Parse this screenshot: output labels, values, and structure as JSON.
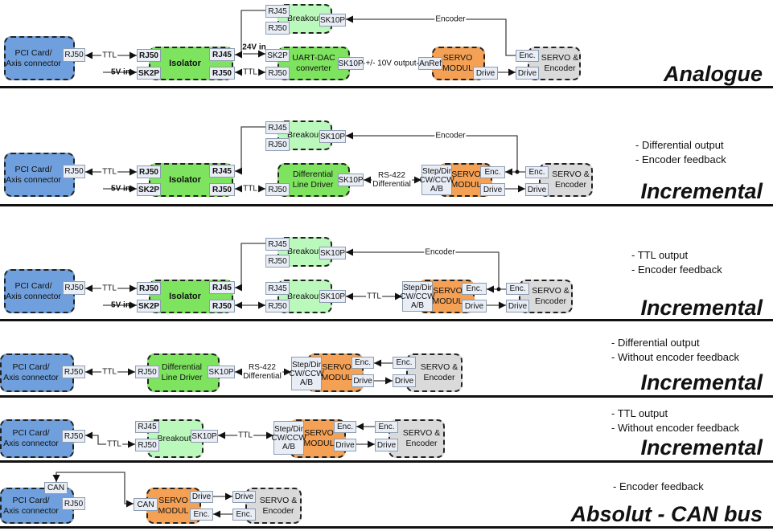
{
  "colors": {
    "pci": "#6f9fdc",
    "driver": "#7ee35e",
    "breakout": "#bbf8bb",
    "servo_module": "#f5a155",
    "servo_encoder": "#dadada"
  },
  "sections": [
    {
      "title": "Analogue",
      "notes": [],
      "blocks": [
        "PCI Card/\nAxis connector",
        "Isolator",
        "Breakout",
        "UART-DAC\nconverter",
        "SERVO\nMODUL",
        "SERVO &\nEncoder"
      ],
      "ports": [
        "RJ50",
        "RJ50",
        "SK2P",
        "RJ45",
        "RJ50",
        "RJ45",
        "RJ50",
        "SK10P",
        "SK2P",
        "RJ50",
        "SK10P",
        "AnRef",
        "Drive",
        "Enc.",
        "Drive"
      ],
      "wire_labels": [
        "TTL",
        "5V in",
        "24V in",
        "TTL",
        "+/- 10V output",
        "Encoder"
      ]
    },
    {
      "title": "Incremental",
      "notes": [
        "- Differential output",
        "- Encoder feedback"
      ],
      "blocks": [
        "PCI Card/\nAxis connector",
        "Isolator",
        "Breakout",
        "Differential\nLine Driver",
        "SERVO\nMODUL",
        "SERVO &\nEncoder"
      ],
      "ports": [
        "RJ50",
        "RJ50",
        "SK2P",
        "RJ45",
        "RJ50",
        "RJ45",
        "RJ50",
        "SK10P",
        "RJ50",
        "SK10P",
        "Step/Dir\nCW/CCW\nA/B",
        "Enc.",
        "Drive",
        "Enc.",
        "Drive"
      ],
      "wire_labels": [
        "TTL",
        "5V in",
        "TTL",
        "RS-422\nDifferential",
        "Encoder"
      ]
    },
    {
      "title": "Incremental",
      "notes": [
        "- TTL output",
        "- Encoder feedback"
      ],
      "blocks": [
        "PCI Card/\nAxis connector",
        "Isolator",
        "Breakout",
        "Breakout",
        "SERVO\nMODUL",
        "SERVO &\nEncoder"
      ],
      "ports": [
        "RJ50",
        "RJ50",
        "SK2P",
        "RJ45",
        "RJ50",
        "RJ45",
        "RJ50",
        "SK10P",
        "RJ45",
        "RJ50",
        "SK10P",
        "Step/Dir\nCW/CCW\nA/B",
        "Enc.",
        "Drive",
        "Enc.",
        "Drive"
      ],
      "wire_labels": [
        "TTL",
        "5V in",
        "TTL",
        "Encoder"
      ]
    },
    {
      "title": "Incremental",
      "notes": [
        "- Differential output",
        "- Without encoder feedback"
      ],
      "blocks": [
        "PCI Card/\nAxis connector",
        "Differential\nLine Driver",
        "SERVO\nMODUL",
        "SERVO &\nEncoder"
      ],
      "ports": [
        "RJ50",
        "RJ50",
        "SK10P",
        "Step/Dir\nCW/CCW\nA/B",
        "Enc.",
        "Drive",
        "Enc.",
        "Drive"
      ],
      "wire_labels": [
        "TTL",
        "RS-422\nDifferential"
      ]
    },
    {
      "title": "Incremental",
      "notes": [
        "- TTL output",
        "- Without encoder feedback"
      ],
      "blocks": [
        "PCI Card/\nAxis connector",
        "Breakout",
        "SERVO\nMODUL",
        "SERVO &\nEncoder"
      ],
      "ports": [
        "RJ50",
        "RJ45",
        "RJ50",
        "SK10P",
        "Step/Dir\nCW/CCW\nA/B",
        "Enc.",
        "Drive",
        "Enc.",
        "Drive"
      ],
      "wire_labels": [
        "TTL",
        "TTL"
      ]
    },
    {
      "title": "Absolut - CAN bus",
      "notes": [
        "- Encoder feedback"
      ],
      "blocks": [
        "PCI Card/\nAxis connector",
        "SERVO\nMODUL",
        "SERVO &\nEncoder"
      ],
      "ports": [
        "CAN",
        "RJ50",
        "CAN",
        "Drive",
        "Enc.",
        "Drive",
        "Enc."
      ],
      "wire_labels": []
    }
  ]
}
